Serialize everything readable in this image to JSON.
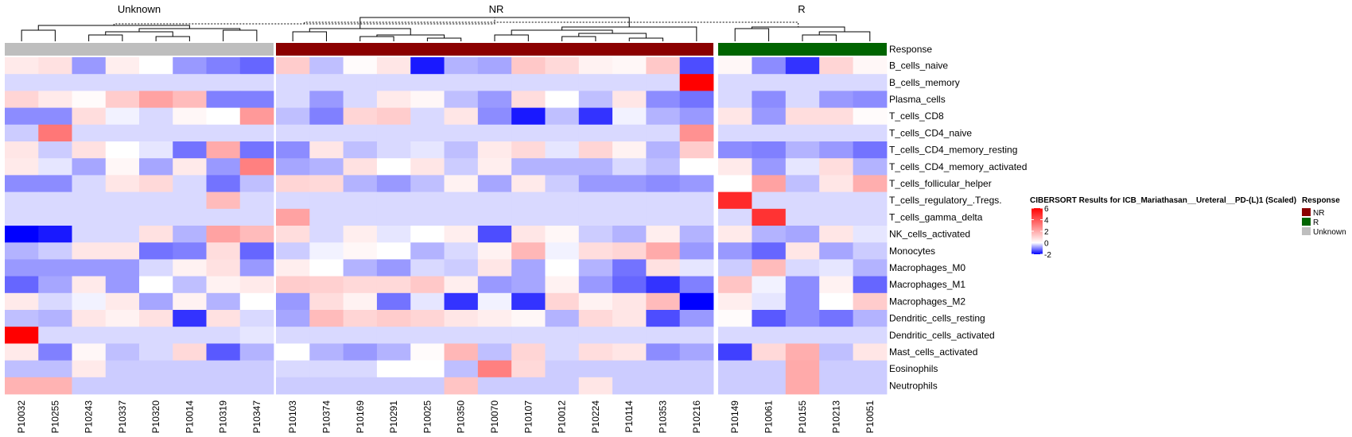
{
  "chart_data": {
    "type": "heatmap",
    "title": "",
    "legend": {
      "title": "CIBERSORT Results for ICB_Mariathasan__Ureteral__PD-(L)1 (Scaled)",
      "ticks": [
        "6",
        "4",
        "2",
        "0",
        "-2"
      ],
      "tick_values": [
        6,
        4,
        2,
        0,
        -2
      ],
      "range": [
        -2,
        6
      ],
      "colors": {
        "low": "#0000ff",
        "mid": "#ffffff",
        "high": "#ff0000"
      }
    },
    "annotation": {
      "title": "Response",
      "label": "Response",
      "groups": [
        {
          "name": "Unknown",
          "color": "#bebebe",
          "count": 8
        },
        {
          "name": "NR",
          "color": "#8b0000",
          "count": 13
        },
        {
          "name": "R",
          "color": "#006400",
          "count": 5
        }
      ],
      "legend_entries": [
        {
          "name": "NR",
          "color": "#8b0000"
        },
        {
          "name": "R",
          "color": "#006400"
        },
        {
          "name": "Unknown",
          "color": "#bebebe"
        }
      ]
    },
    "group_titles": [
      "Unknown",
      "NR",
      "R"
    ],
    "columns": [
      "P10032",
      "P10255",
      "P10243",
      "P10337",
      "P10320",
      "P10014",
      "P10319",
      "P10347",
      "P10103",
      "P10374",
      "P10169",
      "P10291",
      "P10025",
      "P10350",
      "P10070",
      "P10107",
      "P10012",
      "P10224",
      "P10114",
      "P10353",
      "P10216",
      "P10149",
      "P10061",
      "P10155",
      "P10213",
      "P10051"
    ],
    "rows": [
      "B_cells_naive",
      "B_cells_memory",
      "Plasma_cells",
      "T_cells_CD8",
      "T_cells_CD4_naive",
      "T_cells_CD4_memory_resting",
      "T_cells_CD4_memory_activated",
      "T_cells_follicular_helper",
      "T_cells_regulatory_.Tregs.",
      "T_cells_gamma_delta",
      "NK_cells_activated",
      "Monocytes",
      "Macrophages_M0",
      "Macrophages_M1",
      "Macrophages_M2",
      "Dendritic_cells_resting",
      "Dendritic_cells_activated",
      "Mast_cells_activated",
      "Eosinophils",
      "Neutrophils"
    ],
    "values": [
      [
        0.5,
        0.7,
        -0.8,
        0.4,
        0.0,
        -0.8,
        -1.0,
        -1.2,
        1.2,
        -0.5,
        0.1,
        0.6,
        -1.8,
        -0.6,
        -0.7,
        1.3,
        0.9,
        0.3,
        0.2,
        1.3,
        -1.4,
        0.2,
        -0.9,
        -1.6,
        1.0,
        0.2
      ],
      [
        -0.3,
        -0.3,
        -0.3,
        -0.3,
        -0.3,
        -0.3,
        -0.3,
        -0.3,
        -0.3,
        -0.3,
        -0.3,
        -0.3,
        -0.3,
        -0.3,
        -0.3,
        -0.3,
        -0.3,
        -0.3,
        -0.3,
        -0.3,
        6.0,
        -0.3,
        -0.3,
        -0.3,
        -0.3,
        -0.3
      ],
      [
        1.0,
        0.5,
        0.1,
        1.2,
        2.2,
        1.6,
        -1.0,
        -1.0,
        -0.3,
        -0.8,
        -0.3,
        0.5,
        0.2,
        -0.5,
        -0.8,
        0.8,
        0.0,
        -0.5,
        0.6,
        -0.9,
        -1.1,
        -0.3,
        -0.9,
        -0.3,
        -0.8,
        -0.9
      ],
      [
        -0.9,
        -0.9,
        0.8,
        -0.1,
        -0.3,
        0.2,
        0.0,
        2.4,
        -0.5,
        -1.0,
        1.0,
        1.2,
        -0.3,
        0.6,
        -0.9,
        -1.8,
        -0.5,
        -1.6,
        -0.1,
        -0.6,
        -0.8,
        0.6,
        -0.8,
        0.8,
        0.8,
        0.1
      ],
      [
        -0.4,
        3.2,
        -0.3,
        -0.3,
        -0.3,
        -0.3,
        -0.3,
        -0.3,
        -0.3,
        -0.3,
        -0.3,
        -0.3,
        -0.3,
        -0.3,
        -0.3,
        -0.3,
        -0.3,
        -0.3,
        -0.3,
        -0.3,
        2.6,
        -0.3,
        -0.3,
        -0.3,
        -0.3,
        -0.3
      ],
      [
        0.6,
        -0.4,
        0.7,
        0.0,
        -0.2,
        -1.1,
        2.0,
        -1.1,
        -0.9,
        0.6,
        -0.5,
        -0.3,
        -0.2,
        -0.5,
        0.5,
        0.9,
        -0.2,
        1.0,
        0.3,
        -0.6,
        1.2,
        -0.9,
        -1.0,
        -0.6,
        -0.8,
        -1.1
      ],
      [
        0.5,
        -0.2,
        -0.7,
        0.2,
        -0.7,
        0.5,
        -0.8,
        3.0,
        -0.7,
        -0.6,
        0.7,
        0.0,
        0.6,
        -0.4,
        0.4,
        -0.6,
        -0.6,
        -0.6,
        -0.3,
        -0.5,
        0.0,
        0.5,
        -0.8,
        -0.2,
        0.8,
        -0.6
      ],
      [
        -0.9,
        -0.9,
        -0.3,
        0.6,
        0.9,
        -0.3,
        -1.1,
        -0.5,
        1.0,
        0.9,
        -0.6,
        -0.8,
        -0.5,
        0.3,
        -0.7,
        0.5,
        -0.4,
        -0.8,
        -0.8,
        -0.9,
        -0.8,
        0.0,
        2.2,
        -0.5,
        0.6,
        1.9
      ],
      [
        -0.3,
        -0.3,
        -0.3,
        -0.3,
        -0.3,
        -0.3,
        1.6,
        -0.3,
        -0.3,
        -0.3,
        -0.3,
        -0.3,
        -0.3,
        -0.3,
        -0.3,
        -0.3,
        -0.3,
        -0.3,
        -0.3,
        -0.3,
        -0.3,
        5.0,
        -0.3,
        -0.3,
        -0.3,
        -0.3
      ],
      [
        -0.3,
        -0.3,
        -0.3,
        -0.3,
        -0.3,
        -0.3,
        -0.3,
        -0.3,
        2.2,
        -0.3,
        -0.3,
        -0.3,
        -0.3,
        -0.3,
        -0.3,
        -0.3,
        -0.3,
        -0.3,
        -0.3,
        -0.3,
        -0.3,
        -0.3,
        4.8,
        -0.3,
        -0.3,
        -0.3
      ],
      [
        -2.0,
        -1.8,
        -0.3,
        -0.3,
        0.7,
        -0.6,
        2.2,
        1.6,
        0.8,
        -0.3,
        0.4,
        -0.2,
        0.0,
        0.4,
        -1.4,
        0.6,
        0.2,
        -0.4,
        -0.6,
        0.4,
        -0.6,
        0.5,
        -0.6,
        -0.7,
        0.6,
        -0.2
      ],
      [
        -0.6,
        -0.4,
        0.6,
        0.6,
        -1.1,
        -1.0,
        0.8,
        -1.2,
        -0.4,
        -0.1,
        0.2,
        0.0,
        -0.6,
        -0.3,
        0.3,
        1.7,
        -0.1,
        0.8,
        1.0,
        2.0,
        -0.8,
        -0.8,
        -1.2,
        0.6,
        -0.7,
        -0.4
      ],
      [
        -0.8,
        -0.8,
        -0.8,
        -0.8,
        -0.3,
        0.3,
        0.7,
        -0.8,
        0.4,
        0.0,
        -0.6,
        -0.8,
        -0.3,
        -0.4,
        0.6,
        -0.7,
        0.0,
        -0.6,
        -1.1,
        0.7,
        -0.2,
        -0.4,
        1.6,
        -0.3,
        -0.2,
        -0.6
      ],
      [
        -1.2,
        -0.7,
        0.5,
        -0.8,
        0.0,
        -0.5,
        0.3,
        0.5,
        1.2,
        1.1,
        0.9,
        0.9,
        1.3,
        0.4,
        -0.8,
        -0.7,
        0.3,
        -0.8,
        -1.2,
        -1.6,
        -1.0,
        1.4,
        -0.1,
        -0.9,
        0.3,
        -1.2
      ],
      [
        0.5,
        -0.3,
        -0.1,
        0.5,
        -0.7,
        0.3,
        -0.6,
        0.0,
        -0.8,
        0.8,
        0.3,
        -1.1,
        -0.2,
        -1.6,
        -0.1,
        -1.6,
        1.0,
        0.3,
        0.6,
        1.6,
        -2.0,
        0.4,
        -0.2,
        -0.9,
        0.0,
        1.2
      ],
      [
        -0.5,
        -0.6,
        0.6,
        0.3,
        0.7,
        -1.6,
        0.7,
        -0.3,
        -0.7,
        1.6,
        1.0,
        1.2,
        1.0,
        0.6,
        0.4,
        0.2,
        -0.6,
        0.9,
        0.6,
        -1.4,
        -0.8,
        0.1,
        -1.3,
        -0.9,
        -1.1,
        -0.6
      ],
      [
        6.0,
        -0.3,
        -0.3,
        -0.3,
        -0.3,
        -0.3,
        -0.3,
        -0.2,
        -0.3,
        -0.3,
        -0.3,
        -0.3,
        -0.3,
        -0.3,
        -0.3,
        -0.3,
        -0.3,
        -0.3,
        -0.3,
        -0.3,
        -0.3,
        -0.3,
        -0.3,
        -0.3,
        -0.3,
        -0.3
      ],
      [
        0.5,
        -1.0,
        0.2,
        -0.5,
        -0.3,
        0.9,
        -1.3,
        -0.6,
        0.0,
        -0.6,
        -0.8,
        -0.6,
        0.1,
        1.7,
        -0.5,
        1.0,
        -0.3,
        0.8,
        0.6,
        -0.9,
        -0.7,
        -1.5,
        0.9,
        1.9,
        -0.5,
        0.6
      ],
      [
        -0.5,
        -0.5,
        0.5,
        -0.4,
        -0.4,
        -0.4,
        -0.4,
        -0.4,
        -0.3,
        -0.3,
        -0.3,
        0.0,
        0.0,
        -0.5,
        3.0,
        0.9,
        -0.4,
        -0.4,
        -0.4,
        -0.4,
        -0.4,
        -0.4,
        -0.4,
        2.0,
        -0.4,
        -0.4
      ],
      [
        1.8,
        1.8,
        -0.4,
        -0.4,
        -0.4,
        -0.4,
        -0.4,
        -0.4,
        -0.4,
        -0.4,
        -0.4,
        -0.4,
        -0.4,
        1.4,
        -0.4,
        -0.4,
        -0.4,
        0.6,
        -0.4,
        -0.4,
        -0.4,
        -0.4,
        -0.4,
        2.0,
        -0.4,
        -0.4
      ]
    ]
  }
}
